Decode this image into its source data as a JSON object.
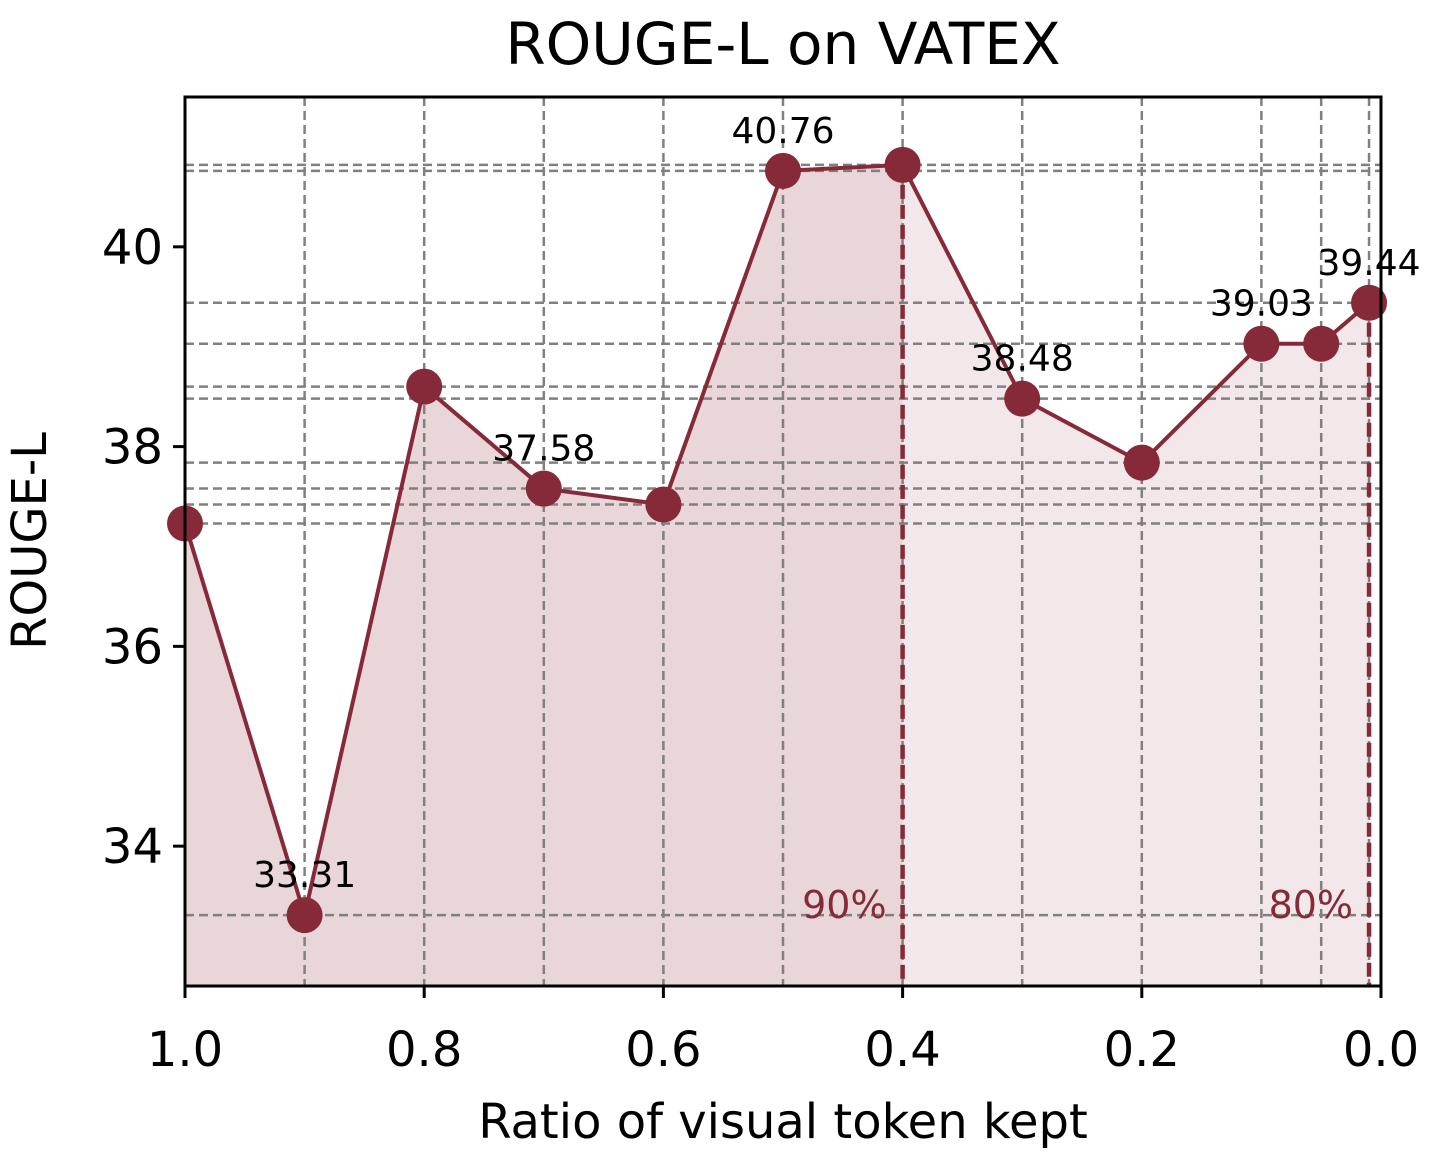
{
  "colors": {
    "line": "#862a3a",
    "fill_primary": "#e8d6d8",
    "fill_secondary": "#f3e8e9",
    "grid": "#808080",
    "annotation": "#862a3a"
  },
  "chart_data": {
    "type": "line",
    "title": "ROUGE-L on VATEX",
    "xlabel": "Ratio of visual token kept",
    "ylabel": "ROUGE-L",
    "xlim": [
      1.0,
      0.0
    ],
    "ylim": [
      32.6,
      41.5
    ],
    "x_inverted": true,
    "grid": true,
    "xticks": [
      1.0,
      0.8,
      0.6,
      0.4,
      0.2,
      0.0
    ],
    "xtick_labels": [
      "1.0",
      "0.8",
      "0.6",
      "0.4",
      "0.2",
      "0.0"
    ],
    "yticks": [
      34,
      36,
      38,
      40
    ],
    "ytick_labels": [
      "34",
      "36",
      "38",
      "40"
    ],
    "series": [
      {
        "x": [
          1.0,
          0.9,
          0.8,
          0.7,
          0.6,
          0.5,
          0.4,
          0.3,
          0.2,
          0.1,
          0.05,
          0.01
        ],
        "y": [
          37.23,
          33.31,
          38.6,
          37.58,
          37.42,
          40.76,
          40.82,
          38.48,
          37.84,
          39.03,
          39.03,
          39.44
        ]
      }
    ],
    "data_labels": [
      {
        "index": 1,
        "text": "33.31"
      },
      {
        "index": 3,
        "text": "37.58"
      },
      {
        "index": 5,
        "text": "40.76"
      },
      {
        "index": 7,
        "text": "38.48"
      },
      {
        "index": 9,
        "text": "39.03"
      },
      {
        "index": 11,
        "text": "39.44"
      }
    ],
    "shaded_regions": [
      {
        "from": 1.0,
        "to": 0.4,
        "style": "primary"
      },
      {
        "from": 0.4,
        "to": 0.01,
        "style": "secondary"
      }
    ],
    "reference_lines": [
      {
        "x": 0.4,
        "label": "90%"
      },
      {
        "x": 0.01,
        "label": "80%"
      }
    ]
  }
}
